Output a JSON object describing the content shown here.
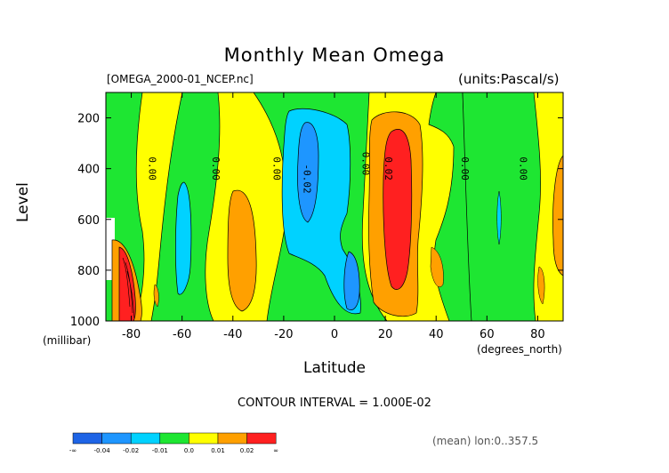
{
  "chart_data": {
    "type": "heatmap",
    "title": "Monthly Mean Omega",
    "file_label": "[OMEGA_2000-01_NCEP.nc]",
    "units_label": "(units:Pascal/s)",
    "xlabel": "Latitude",
    "xunit": "(degrees_north)",
    "ylabel": "Level",
    "yunit": "(millibar)",
    "xlim": [
      -90,
      90
    ],
    "ylim": [
      1000,
      100
    ],
    "xticks": [
      -80,
      -60,
      -40,
      -20,
      0,
      20,
      40,
      60,
      80
    ],
    "yticks": [
      200,
      400,
      600,
      800,
      1000
    ],
    "contour_interval": "CONTOUR INTERVAL = 1.000E-02",
    "mean_note": "(mean) lon:0..357.5",
    "contour_labels": [
      "0.00",
      "0.00",
      "0.00",
      "-0.02",
      "0.00",
      "0.02",
      "0.00",
      "0.00"
    ],
    "colorbar": {
      "colors": [
        "#1e64e6",
        "#1e96ff",
        "#00d2ff",
        "#1ee632",
        "#ffff00",
        "#ffa000",
        "#ff2020"
      ],
      "labels": [
        "-∞",
        "-0.04",
        "-0.02",
        "-0.01",
        "0.0",
        "0.01",
        "0.02",
        "∞"
      ]
    },
    "background_color": "#ffff00"
  }
}
